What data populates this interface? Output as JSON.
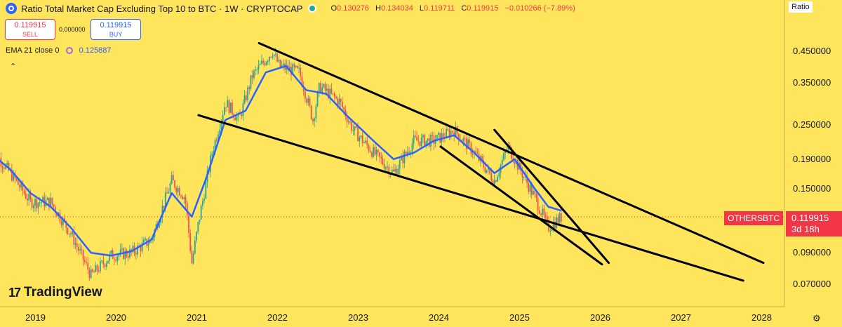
{
  "header": {
    "title": "Ratio Total Market Cap Excluding Top 10 to BTC · 1W · CRYPTOCAP",
    "ohlc": {
      "o_label": "O",
      "o": "0.130276",
      "h_label": "H",
      "h": "0.134034",
      "l_label": "L",
      "l": "0.119711",
      "c_label": "C",
      "c": "0.119915",
      "change": "−0.010266 (−7.89%)"
    }
  },
  "trade": {
    "sell_price": "0.119915",
    "sell_label": "SELL",
    "spread": "0.000000",
    "buy_price": "0.119915",
    "buy_label": "BUY"
  },
  "indicator": {
    "label": "EMA 21 close 0",
    "value": "0.125887",
    "color": "#2962FF"
  },
  "axis_name": "Ratio",
  "brand": "TradingView",
  "symbol_label": "OTHERSBTC",
  "price_tag": {
    "price": "0.119915",
    "countdown": "3d 18h"
  },
  "colors": {
    "background": "#FFE55C",
    "up": "#26a69a",
    "down": "#ef5350",
    "ema": "#2962FF",
    "tag": "#F23645",
    "trendline": "#000000"
  },
  "chart_data": {
    "type": "candlestick",
    "x_ticks": [
      "2019",
      "2020",
      "2021",
      "2022",
      "2023",
      "2024",
      "2025",
      "2026",
      "2027",
      "2028"
    ],
    "y_ticks": [
      0.07,
      0.09,
      0.15,
      0.19,
      0.25,
      0.35,
      0.45
    ],
    "y_tick_labels": [
      "0.070000",
      "0.090000",
      "0.150000",
      "0.190000",
      "0.250000",
      "0.350000",
      "0.450000"
    ],
    "y_scale": "log",
    "close_path": [
      [
        "2018-06",
        0.21
      ],
      [
        "2018-09",
        0.17
      ],
      [
        "2018-12",
        0.135
      ],
      [
        "2019-03",
        0.135
      ],
      [
        "2019-06",
        0.105
      ],
      [
        "2019-09",
        0.075
      ],
      [
        "2019-12",
        0.088
      ],
      [
        "2020-03",
        0.09
      ],
      [
        "2020-06",
        0.1
      ],
      [
        "2020-09",
        0.16
      ],
      [
        "2020-11",
        0.14
      ],
      [
        "2020-12",
        0.083
      ],
      [
        "2021-01",
        0.115
      ],
      [
        "2021-03",
        0.2
      ],
      [
        "2021-05",
        0.3
      ],
      [
        "2021-07",
        0.26
      ],
      [
        "2021-09",
        0.37
      ],
      [
        "2021-12",
        0.45
      ],
      [
        "2022-01",
        0.4
      ],
      [
        "2022-04",
        0.38
      ],
      [
        "2022-06",
        0.26
      ],
      [
        "2022-07",
        0.34
      ],
      [
        "2022-10",
        0.3
      ],
      [
        "2022-12",
        0.24
      ],
      [
        "2023-03",
        0.2
      ],
      [
        "2023-06",
        0.17
      ],
      [
        "2023-09",
        0.22
      ],
      [
        "2023-12",
        0.22
      ],
      [
        "2024-03",
        0.24
      ],
      [
        "2024-06",
        0.2
      ],
      [
        "2024-09",
        0.16
      ],
      [
        "2024-11",
        0.21
      ],
      [
        "2024-12",
        0.19
      ],
      [
        "2025-03",
        0.14
      ],
      [
        "2025-05",
        0.11
      ],
      [
        "2025-07",
        0.12
      ]
    ],
    "ema21_path": [
      [
        "2018-06",
        0.2
      ],
      [
        "2018-09",
        0.175
      ],
      [
        "2018-12",
        0.145
      ],
      [
        "2019-03",
        0.13
      ],
      [
        "2019-06",
        0.11
      ],
      [
        "2019-09",
        0.09
      ],
      [
        "2019-12",
        0.088
      ],
      [
        "2020-03",
        0.091
      ],
      [
        "2020-06",
        0.1
      ],
      [
        "2020-09",
        0.145
      ],
      [
        "2020-12",
        0.12
      ],
      [
        "2021-02",
        0.16
      ],
      [
        "2021-05",
        0.26
      ],
      [
        "2021-08",
        0.28
      ],
      [
        "2021-11",
        0.38
      ],
      [
        "2022-02",
        0.4
      ],
      [
        "2022-05",
        0.33
      ],
      [
        "2022-08",
        0.32
      ],
      [
        "2022-11",
        0.27
      ],
      [
        "2023-03",
        0.22
      ],
      [
        "2023-06",
        0.19
      ],
      [
        "2023-09",
        0.2
      ],
      [
        "2023-12",
        0.22
      ],
      [
        "2024-03",
        0.23
      ],
      [
        "2024-06",
        0.2
      ],
      [
        "2024-09",
        0.17
      ],
      [
        "2024-12",
        0.19
      ],
      [
        "2025-03",
        0.15
      ],
      [
        "2025-05",
        0.13
      ],
      [
        "2025-07",
        0.125887
      ]
    ],
    "last_price": 0.119915,
    "trendlines": [
      {
        "from": [
          "2021-10",
          0.48
        ],
        "to": [
          "2028-01",
          0.083
        ]
      },
      {
        "from": [
          "2021-01",
          0.27
        ],
        "to": [
          "2027-10",
          0.072
        ]
      },
      {
        "from": [
          "2024-01",
          0.21
        ],
        "to": [
          "2026-01",
          0.082
        ]
      },
      {
        "from": [
          "2024-09",
          0.24
        ],
        "to": [
          "2026-02",
          0.083
        ]
      }
    ],
    "grid": false,
    "legend": "none"
  }
}
